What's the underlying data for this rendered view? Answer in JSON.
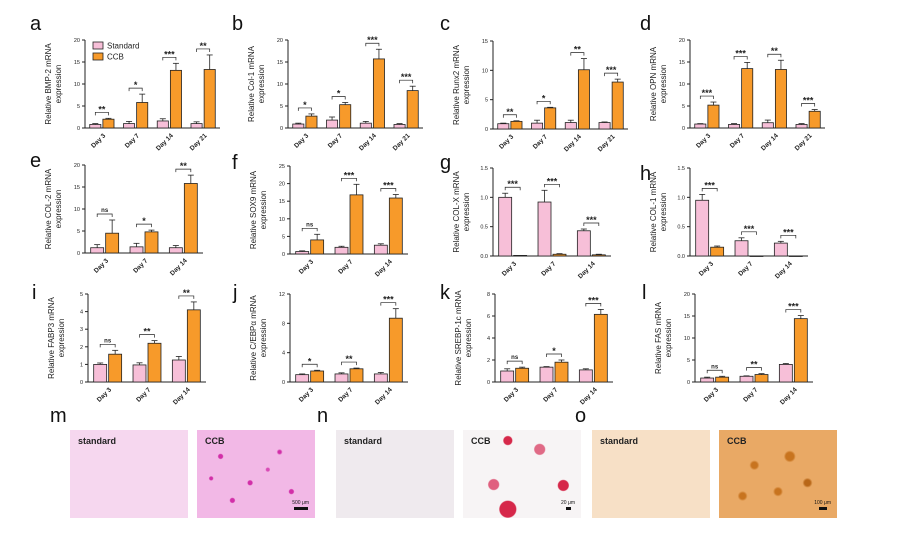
{
  "colors": {
    "standard": "#f7bfd8",
    "ccb": "#f79a2a",
    "stroke": "#222222"
  },
  "legend": {
    "standard": "Standard",
    "ccb": "CCB"
  },
  "chart_data": [
    {
      "id": "a",
      "type": "bar",
      "ylabel": [
        "Relative BMP-2 mRNA",
        "expression"
      ],
      "categories": [
        "Day 3",
        "Day 7",
        "Day 14",
        "Day 21"
      ],
      "ylim": [
        0,
        20
      ],
      "yticks": [
        "0",
        "5",
        "10",
        "15",
        "20"
      ],
      "series": [
        {
          "name": "Standard",
          "values": [
            0.8,
            1.0,
            1.6,
            1.0
          ],
          "err": [
            0.2,
            0.5,
            0.5,
            0.4
          ]
        },
        {
          "name": "CCB",
          "values": [
            2.0,
            5.8,
            13.1,
            13.3
          ],
          "err": [
            0.2,
            1.9,
            1.6,
            3.3
          ]
        }
      ],
      "significance": [
        "**",
        "*",
        "***",
        "**"
      ],
      "legend": "top-left"
    },
    {
      "id": "b",
      "type": "bar",
      "ylabel": [
        "Relative Col-1 mRNA",
        "expression"
      ],
      "categories": [
        "Day 3",
        "Day 7",
        "Day 14",
        "Day 21"
      ],
      "ylim": [
        0,
        20
      ],
      "yticks": [
        "0",
        "5",
        "10",
        "15",
        "20"
      ],
      "series": [
        {
          "name": "Standard",
          "values": [
            0.9,
            1.8,
            1.1,
            0.8
          ],
          "err": [
            0.2,
            0.7,
            0.4,
            0.2
          ]
        },
        {
          "name": "CCB",
          "values": [
            2.7,
            5.3,
            15.7,
            8.5
          ],
          "err": [
            0.5,
            0.5,
            2.2,
            1.0
          ]
        }
      ],
      "significance": [
        "*",
        "*",
        "***",
        "***"
      ]
    },
    {
      "id": "c",
      "type": "bar",
      "ylabel": [
        "Relative Runx2 mRNA",
        "expression"
      ],
      "categories": [
        "Day 3",
        "Day 7",
        "Day 14",
        "Day 21"
      ],
      "ylim": [
        0,
        15
      ],
      "yticks": [
        "0",
        "5",
        "10",
        "15"
      ],
      "series": [
        {
          "name": "Standard",
          "values": [
            0.9,
            1.0,
            1.1,
            1.1
          ],
          "err": [
            0.1,
            0.5,
            0.4,
            0.1
          ]
        },
        {
          "name": "CCB",
          "values": [
            1.3,
            3.6,
            10.1,
            8.0
          ],
          "err": [
            0.1,
            0.1,
            1.9,
            0.5
          ]
        }
      ],
      "significance": [
        "**",
        "*",
        "**",
        "***"
      ]
    },
    {
      "id": "d",
      "type": "bar",
      "ylabel": [
        "Relative OPN mRNA",
        "expression"
      ],
      "categories": [
        "Day 3",
        "Day 7",
        "Day 14",
        "Day 21"
      ],
      "ylim": [
        0,
        20
      ],
      "yticks": [
        "0",
        "5",
        "10",
        "15",
        "20"
      ],
      "series": [
        {
          "name": "Standard",
          "values": [
            0.9,
            0.8,
            1.2,
            0.8
          ],
          "err": [
            0.1,
            0.2,
            0.6,
            0.2
          ]
        },
        {
          "name": "CCB",
          "values": [
            5.2,
            13.5,
            13.3,
            3.8
          ],
          "err": [
            0.7,
            1.4,
            2.1,
            0.4
          ]
        }
      ],
      "significance": [
        "***",
        "***",
        "**",
        "***"
      ]
    },
    {
      "id": "e",
      "type": "bar",
      "ylabel": [
        "Relative COL-2 mRNA",
        "expression"
      ],
      "categories": [
        "Day 3",
        "Day 7",
        "Day 14"
      ],
      "ylim": [
        0,
        20
      ],
      "yticks": [
        "0",
        "5",
        "10",
        "15",
        "20"
      ],
      "series": [
        {
          "name": "Standard",
          "values": [
            1.2,
            1.4,
            1.2
          ],
          "err": [
            0.7,
            0.8,
            0.5
          ]
        },
        {
          "name": "CCB",
          "values": [
            4.5,
            4.8,
            15.8
          ],
          "err": [
            3.0,
            0.4,
            1.9
          ]
        }
      ],
      "significance": [
        "ns",
        "*",
        "**"
      ]
    },
    {
      "id": "f",
      "type": "bar",
      "ylabel": [
        "Relative SOX9 mRNA",
        "expression"
      ],
      "categories": [
        "Day 3",
        "Day 7",
        "Day 14"
      ],
      "ylim": [
        0,
        25
      ],
      "yticks": [
        "0",
        "5",
        "10",
        "15",
        "20",
        "25"
      ],
      "series": [
        {
          "name": "Standard",
          "values": [
            0.7,
            1.9,
            2.5
          ],
          "err": [
            0.2,
            0.3,
            0.4
          ]
        },
        {
          "name": "CCB",
          "values": [
            4.0,
            16.8,
            15.9
          ],
          "err": [
            1.6,
            3.0,
            1.0
          ]
        }
      ],
      "significance": [
        "ns",
        "***",
        "***"
      ]
    },
    {
      "id": "g",
      "type": "bar",
      "ylabel": [
        "Relative COL-X mRNA",
        "expression"
      ],
      "categories": [
        "Day 3",
        "Day 7",
        "Day 14"
      ],
      "ylim": [
        0,
        1.5
      ],
      "yticks": [
        "0.0",
        "0.5",
        "1.0",
        "1.5"
      ],
      "series": [
        {
          "name": "Standard",
          "values": [
            1.0,
            0.92,
            0.43
          ],
          "err": [
            0.07,
            0.2,
            0.03
          ]
        },
        {
          "name": "CCB",
          "values": [
            0.01,
            0.03,
            0.02
          ],
          "err": [
            0.0,
            0.01,
            0.01
          ]
        }
      ],
      "significance": [
        "***",
        "***",
        "***"
      ]
    },
    {
      "id": "h",
      "type": "bar",
      "ylabel": [
        "Relative COL-1 mRNA",
        "expression"
      ],
      "categories": [
        "Day 3",
        "Day 7",
        "Day 14"
      ],
      "ylim": [
        0,
        1.5
      ],
      "yticks": [
        "0.0",
        "0.5",
        "1.0",
        "1.5"
      ],
      "series": [
        {
          "name": "Standard",
          "values": [
            0.95,
            0.26,
            0.22
          ],
          "err": [
            0.1,
            0.05,
            0.03
          ]
        },
        {
          "name": "CCB",
          "values": [
            0.15,
            0.0,
            0.0
          ],
          "err": [
            0.02,
            0.0,
            0.0
          ]
        }
      ],
      "significance": [
        "***",
        "***",
        "***"
      ]
    },
    {
      "id": "i",
      "type": "bar",
      "ylabel": [
        "Relative  FABP3 mRNA",
        "expression"
      ],
      "categories": [
        "Day 3",
        "Day 7",
        "Day 14"
      ],
      "ylim": [
        0,
        5
      ],
      "yticks": [
        "0",
        "1",
        "2",
        "3",
        "4",
        "5"
      ],
      "series": [
        {
          "name": "Standard",
          "values": [
            1.0,
            0.97,
            1.25
          ],
          "err": [
            0.08,
            0.12,
            0.2
          ]
        },
        {
          "name": "CCB",
          "values": [
            1.58,
            2.2,
            4.1
          ],
          "err": [
            0.22,
            0.15,
            0.45
          ]
        }
      ],
      "significance": [
        "ns",
        "**",
        "**"
      ]
    },
    {
      "id": "j",
      "type": "bar",
      "ylabel": [
        "Relative  C/EBPα mRNA",
        "expression"
      ],
      "categories": [
        "Day 3",
        "Day 7",
        "Day 14"
      ],
      "ylim": [
        0,
        12
      ],
      "yticks": [
        "0",
        "4",
        "8",
        "12"
      ],
      "series": [
        {
          "name": "Standard",
          "values": [
            1.0,
            1.1,
            1.1
          ],
          "err": [
            0.1,
            0.15,
            0.2
          ]
        },
        {
          "name": "CCB",
          "values": [
            1.5,
            1.8,
            8.7
          ],
          "err": [
            0.1,
            0.1,
            1.3
          ]
        }
      ],
      "significance": [
        "*",
        "**",
        "***"
      ]
    },
    {
      "id": "k",
      "type": "bar",
      "ylabel": [
        "Relative SREBP-1c mRNA",
        "expression"
      ],
      "categories": [
        "Day 3",
        "Day 7",
        "Day 14"
      ],
      "ylim": [
        0,
        8
      ],
      "yticks": [
        "0",
        "2",
        "4",
        "6",
        "8"
      ],
      "series": [
        {
          "name": "Standard",
          "values": [
            1.0,
            1.35,
            1.1
          ],
          "err": [
            0.2,
            0.05,
            0.1
          ]
        },
        {
          "name": "CCB",
          "values": [
            1.25,
            1.8,
            6.15
          ],
          "err": [
            0.1,
            0.2,
            0.45
          ]
        }
      ],
      "significance": [
        "ns",
        "*",
        "***"
      ]
    },
    {
      "id": "l",
      "type": "bar",
      "ylabel": [
        "Relative FAS mRNA",
        "expression"
      ],
      "categories": [
        "Day 3",
        "Day 7",
        "Day 14"
      ],
      "ylim": [
        0,
        20
      ],
      "yticks": [
        "0",
        "5",
        "10",
        "15",
        "20"
      ],
      "series": [
        {
          "name": "Standard",
          "values": [
            0.9,
            1.3,
            4.0
          ],
          "err": [
            0.2,
            0.1,
            0.2
          ]
        },
        {
          "name": "CCB",
          "values": [
            1.1,
            1.7,
            14.4
          ],
          "err": [
            0.2,
            0.2,
            0.7
          ]
        }
      ],
      "significance": [
        "ns",
        "**",
        "***"
      ]
    }
  ],
  "images": {
    "m": {
      "letter": "m",
      "left": "standard",
      "right": "CCB",
      "scale": "500 μm"
    },
    "n": {
      "letter": "n",
      "left": "standard",
      "right": "CCB",
      "scale": "20 μm"
    },
    "o": {
      "letter": "o",
      "left": "standard",
      "right": "CCB",
      "scale": "100 μm"
    }
  }
}
